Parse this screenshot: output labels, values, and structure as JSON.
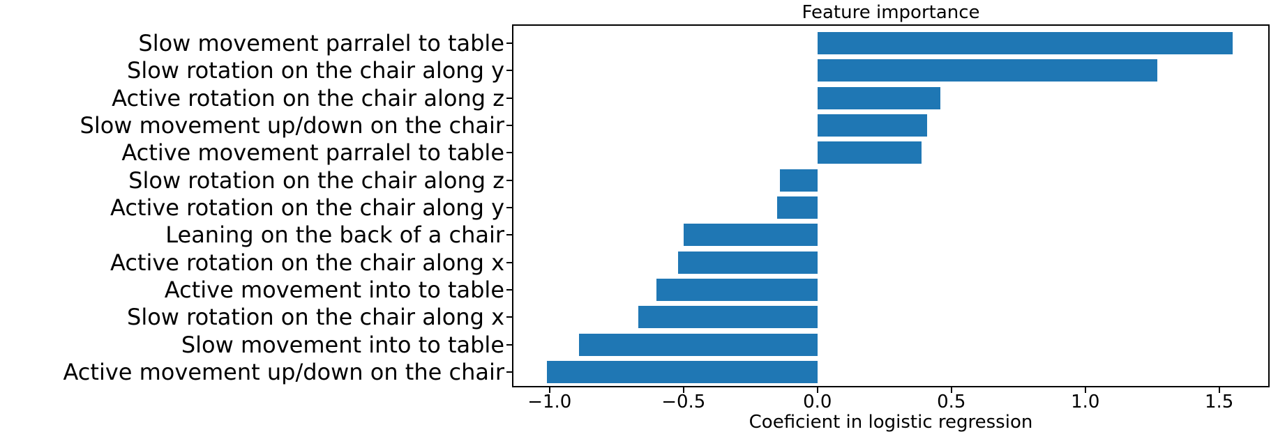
{
  "chart_data": {
    "type": "bar",
    "orientation": "horizontal",
    "title": "Feature importance",
    "xlabel": "Coeficient in logistic regression",
    "categories": [
      "Slow movement parralel to table",
      "Slow rotation on the chair along y",
      "Active rotation on the chair along z",
      "Slow movement up/down on the chair",
      "Active movement parralel to table",
      "Slow rotation on the chair along z",
      "Active rotation on the chair along y",
      "Leaning on the back of a chair",
      "Active rotation on the chair along x",
      "Active movement into to table",
      "Slow rotation on the chair along x",
      "Slow movement into to table",
      "Active movement up/down on the chair"
    ],
    "values": [
      1.55,
      1.27,
      0.46,
      0.41,
      0.39,
      -0.14,
      -0.15,
      -0.5,
      -0.52,
      -0.6,
      -0.67,
      -0.89,
      -1.01
    ],
    "xticks": [
      -1.0,
      -0.5,
      0.0,
      0.5,
      1.0,
      1.5
    ],
    "xtick_labels": [
      "−1.0",
      "−0.5",
      "0.0",
      "0.5",
      "1.0",
      "1.5"
    ],
    "xlim": [
      -1.135,
      1.683
    ],
    "bar_color": "#1f77b4",
    "text_color": "#000000",
    "spine_color": "#000000",
    "grid": false,
    "legend_position": "none"
  }
}
